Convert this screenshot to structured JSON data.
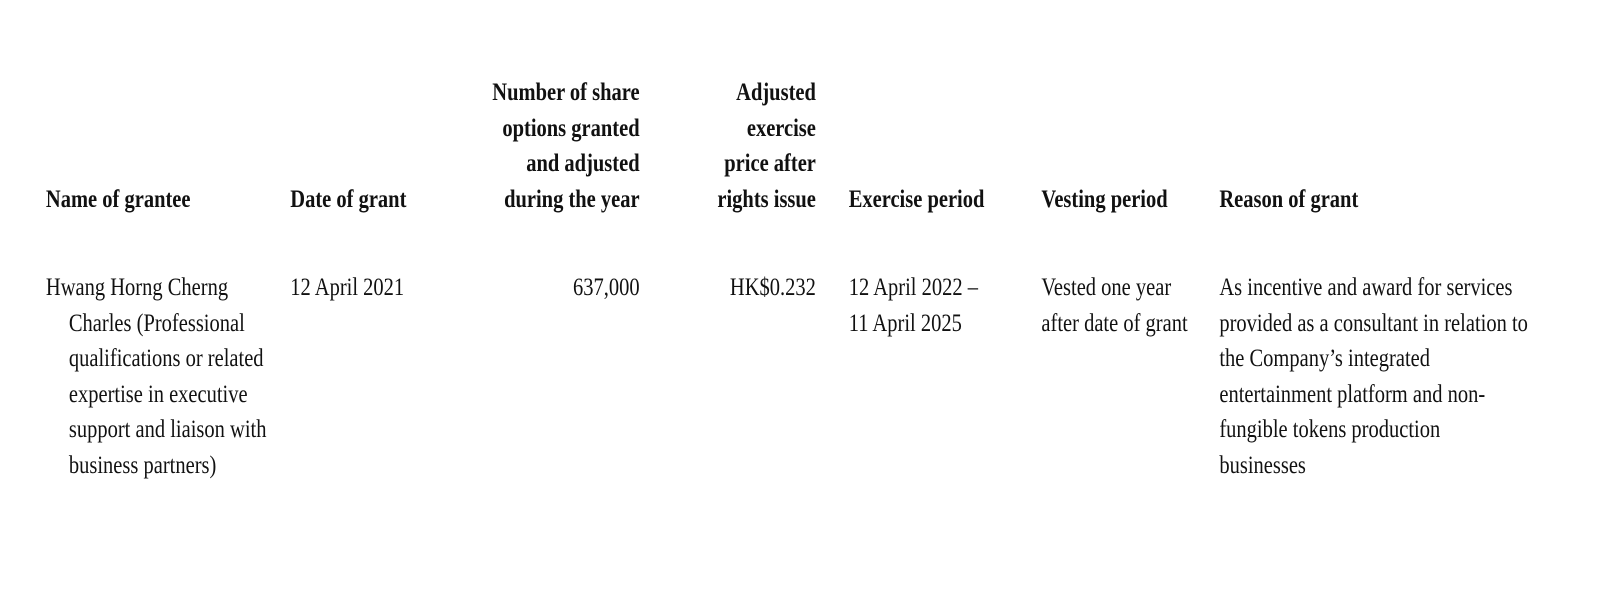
{
  "table": {
    "header": [
      "Name of grantee",
      "Date of grant",
      "Number of share options granted and adjusted during the year",
      "Adjusted exercise price after rights issue",
      "Exercise period",
      "Vesting period",
      "Reason of grant"
    ],
    "rows": [
      [
        "Hwang Horng Cherng Charles (Professional qualifications or related expertise in executive support and liaison with business partners)",
        "12 April 2021",
        "637,000",
        "HK$0.232",
        "12 April 2022 – 11 April 2025",
        "Vested one year after date of grant",
        "As incentive and award for services provided as a consultant in relation to the Company’s integrated entertainment platform and non-fungible tokens production businesses"
      ]
    ]
  }
}
